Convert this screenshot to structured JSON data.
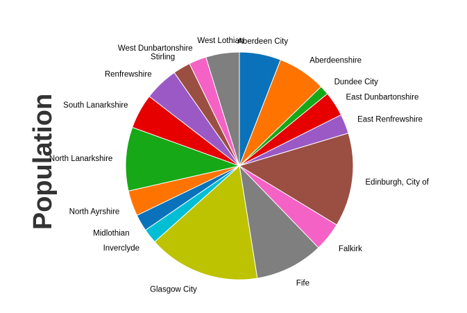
{
  "chart_data": {
    "type": "pie",
    "ylabel": "Population",
    "categories": [
      "Aberdeen City",
      "Aberdeenshire",
      "Dundee City",
      "East Dunbartonshire",
      "East Renfrewshire",
      "Edinburgh, City of",
      "Falkirk",
      "Fife",
      "Glasgow City",
      "Inverclyde",
      "Midlothian",
      "North Ayrshire",
      "North Lanarkshire",
      "South Lanarkshire",
      "Renfrewshire",
      "Stirling",
      "West Dunbartonshire",
      "West Lothian"
    ],
    "values": [
      6.2,
      7.2,
      1.4,
      3.7,
      2.9,
      14.0,
      4.3,
      10.2,
      16.7,
      2.2,
      2.5,
      3.8,
      9.5,
      5.2,
      5.1,
      2.6,
      2.6,
      5.0
    ],
    "colors": [
      "#0a72ba",
      "#ff7300",
      "#16a816",
      "#e60000",
      "#9b59c6",
      "#9a4f42",
      "#f562c5",
      "#7f7f7f",
      "#bdc300",
      "#00bfd4",
      "#0a72ba",
      "#ff7300",
      "#16a816",
      "#e60000",
      "#9b59c6",
      "#9a4f42",
      "#f562c5",
      "#7f7f7f"
    ],
    "start_angle_deg": 0,
    "direction": "clockwise"
  }
}
